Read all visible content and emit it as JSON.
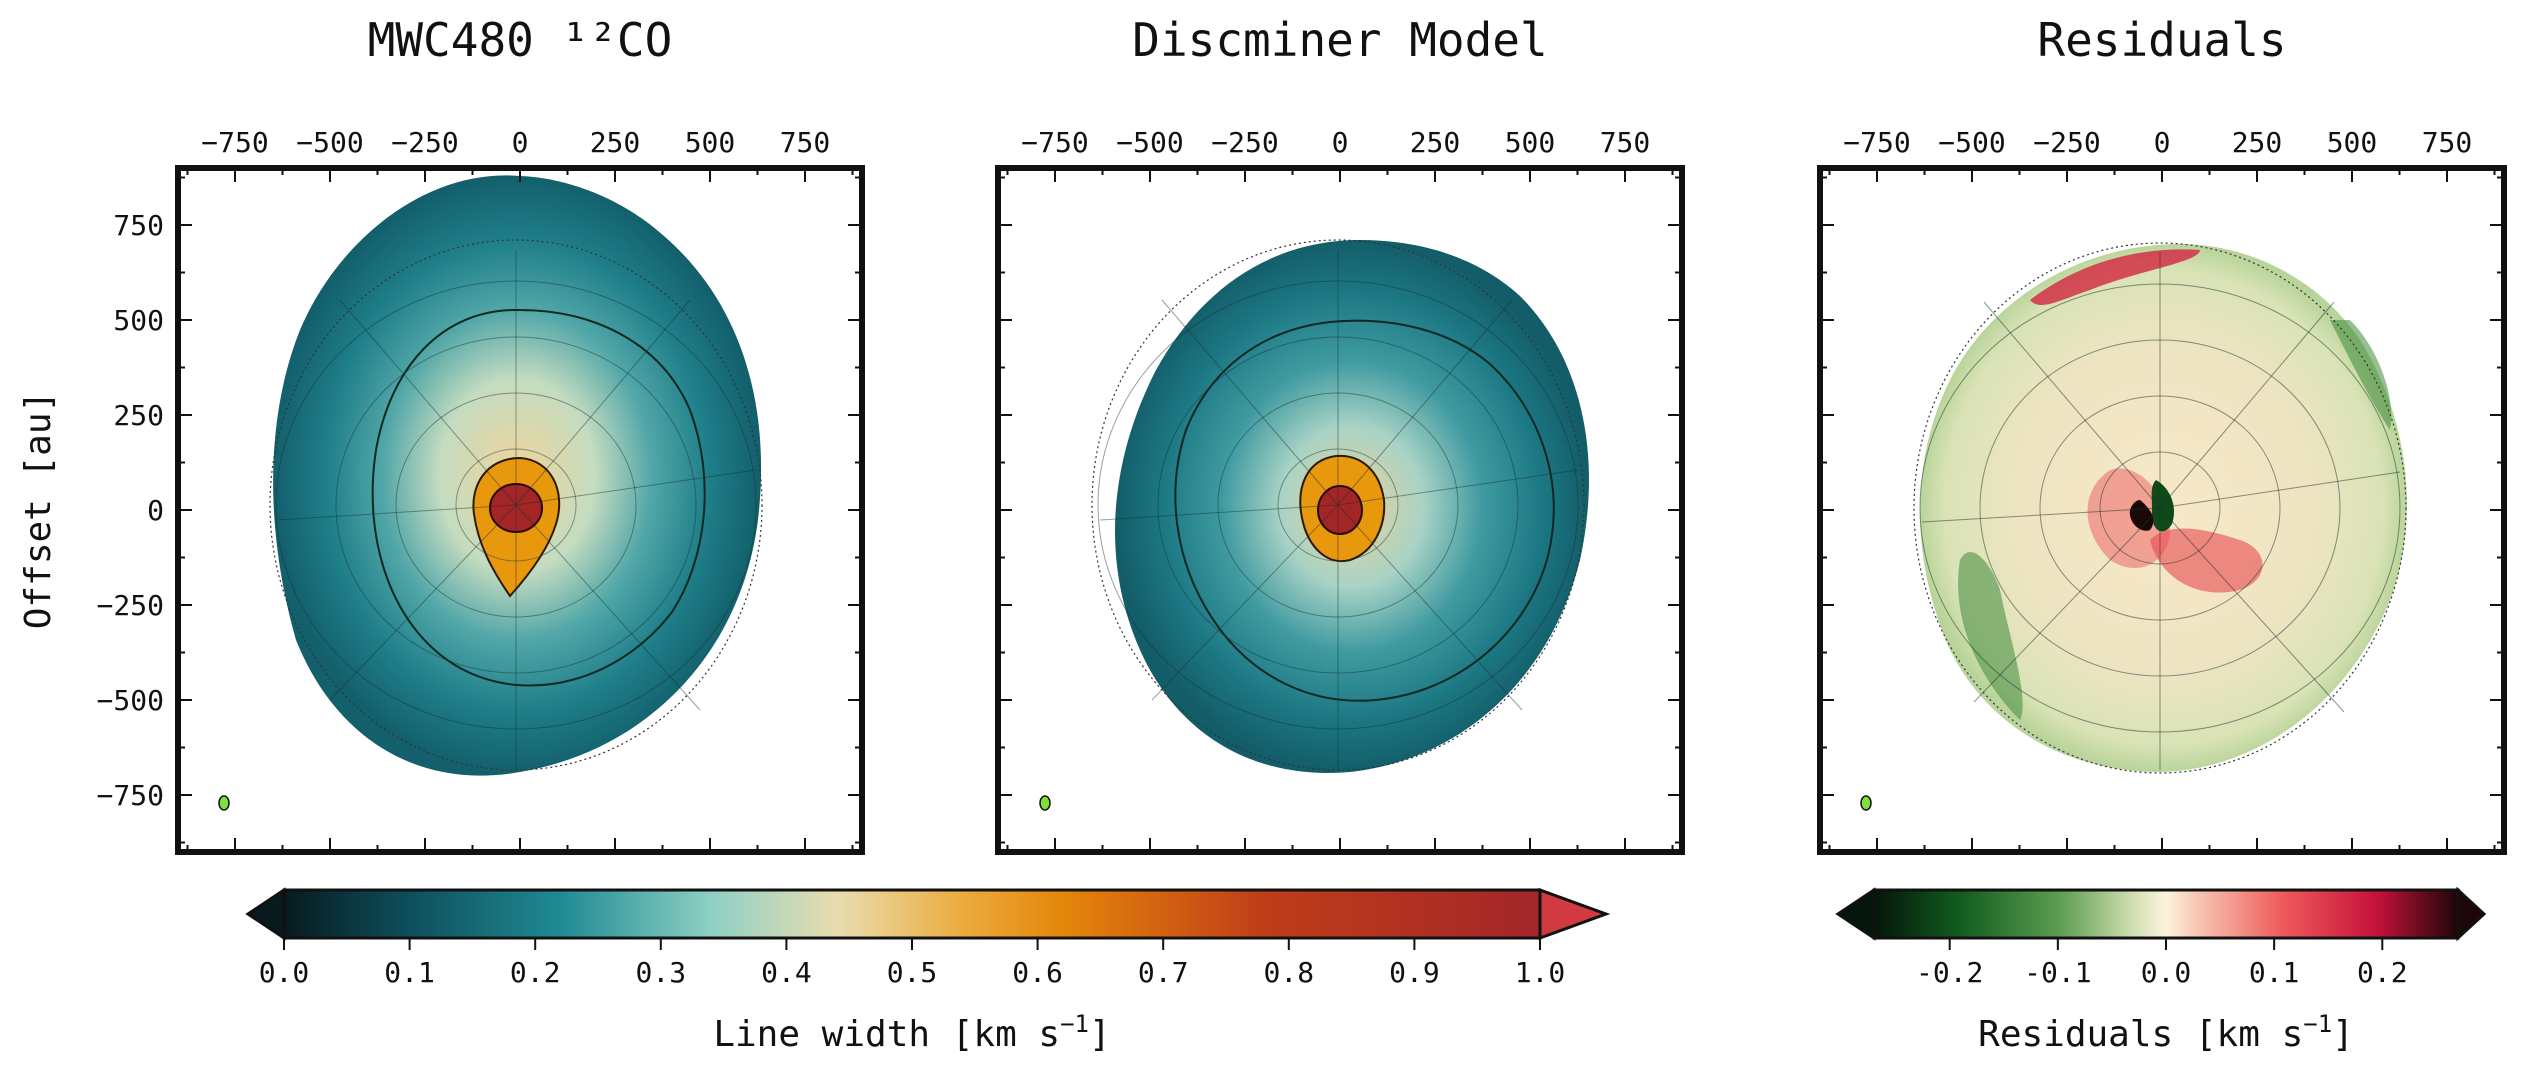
{
  "chart_data": [
    {
      "type": "heatmap",
      "title": "MWC480 ¹²CO",
      "ylabel": "Offset [au]",
      "xticks": [
        -750,
        -500,
        -250,
        0,
        250,
        500,
        750
      ],
      "yticks": [
        750,
        500,
        250,
        0,
        -250,
        -500,
        -750
      ],
      "xlim": [
        -900,
        900
      ],
      "ylim": [
        -900,
        900
      ],
      "colorbar": "linewidth"
    },
    {
      "type": "heatmap",
      "title": "Discminer Model",
      "xticks": [
        -750,
        -500,
        -250,
        0,
        250,
        500,
        750
      ],
      "xlim": [
        -900,
        900
      ],
      "ylim": [
        -900,
        900
      ],
      "colorbar": "linewidth"
    },
    {
      "type": "heatmap",
      "title": "Residuals",
      "xticks": [
        -750,
        -500,
        -250,
        0,
        250,
        500,
        750
      ],
      "xlim": [
        -900,
        900
      ],
      "ylim": [
        -900,
        900
      ],
      "colorbar": "residuals"
    }
  ],
  "colorbars": {
    "linewidth": {
      "label": "Line width [km s",
      "label_exp": "−1",
      "label_close": "]",
      "ticks": [
        "0.0",
        "0.1",
        "0.2",
        "0.3",
        "0.4",
        "0.5",
        "0.6",
        "0.7",
        "0.8",
        "0.9",
        "1.0"
      ],
      "range": [
        0.0,
        1.0
      ]
    },
    "residuals": {
      "label": "Residuals [km s",
      "label_exp": "−1",
      "label_close": "]",
      "ticks": [
        "-0.2",
        "-0.1",
        "0.0",
        "0.1",
        "0.2"
      ],
      "tick_values": [
        -0.2,
        -0.1,
        0.0,
        0.1,
        0.2
      ],
      "range": [
        -0.27,
        0.27
      ]
    }
  },
  "colors": {
    "teal": "#1f7f8a",
    "deep_teal": "#0e4f5c",
    "pale": "#e6dcb0",
    "orange": "#e8980c",
    "dark_red": "#a32525",
    "green": "#2d7a2b",
    "red": "#e0303a",
    "beam": "#7fe03a"
  }
}
